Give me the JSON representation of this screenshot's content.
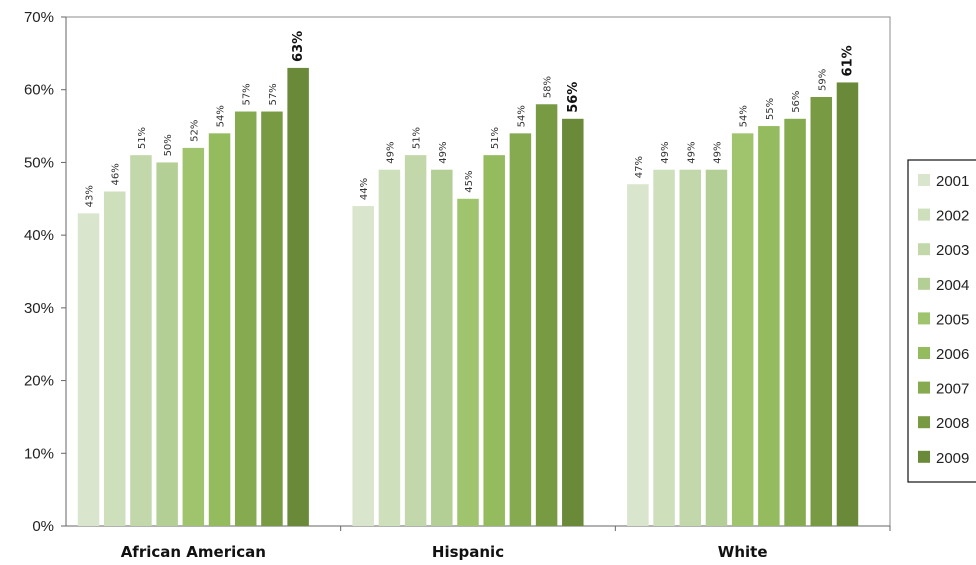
{
  "chart_data": {
    "type": "bar",
    "categories": [
      "African American",
      "Hispanic",
      "White"
    ],
    "series": [
      {
        "name": "2001",
        "values": [
          43,
          44,
          47
        ],
        "color": "#d9e5cc"
      },
      {
        "name": "2002",
        "values": [
          46,
          49,
          49
        ],
        "color": "#cddfbb"
      },
      {
        "name": "2003",
        "values": [
          51,
          51,
          49
        ],
        "color": "#c2d8ab"
      },
      {
        "name": "2004",
        "values": [
          50,
          49,
          49
        ],
        "color": "#b3cf96"
      },
      {
        "name": "2005",
        "values": [
          52,
          45,
          54
        ],
        "color": "#a0c46e"
      },
      {
        "name": "2006",
        "values": [
          54,
          51,
          55
        ],
        "color": "#94bb5d"
      },
      {
        "name": "2007",
        "values": [
          57,
          54,
          56
        ],
        "color": "#86aa4f"
      },
      {
        "name": "2008",
        "values": [
          57,
          58,
          59
        ],
        "color": "#789a43"
      },
      {
        "name": "2009",
        "values": [
          63,
          56,
          61
        ],
        "color": "#6a8a3a"
      }
    ],
    "data_labels": [
      [
        "43%",
        "44%",
        "47%"
      ],
      [
        "46%",
        "49%",
        "49%"
      ],
      [
        "51%",
        "51%",
        "49%"
      ],
      [
        "50%",
        "49%",
        "49%"
      ],
      [
        "52%",
        "45%",
        "54%"
      ],
      [
        "54%",
        "51%",
        "55%"
      ],
      [
        "57%",
        "54%",
        "56%"
      ],
      [
        "57%",
        "58%",
        "59%"
      ],
      [
        "63%",
        "56%",
        "61%"
      ]
    ],
    "yticks": [
      "0%",
      "10%",
      "20%",
      "30%",
      "40%",
      "50%",
      "60%",
      "70%"
    ],
    "ylim": [
      0,
      70
    ],
    "title": "",
    "xlabel": "",
    "ylabel": "",
    "grid": false,
    "legend": "right"
  }
}
